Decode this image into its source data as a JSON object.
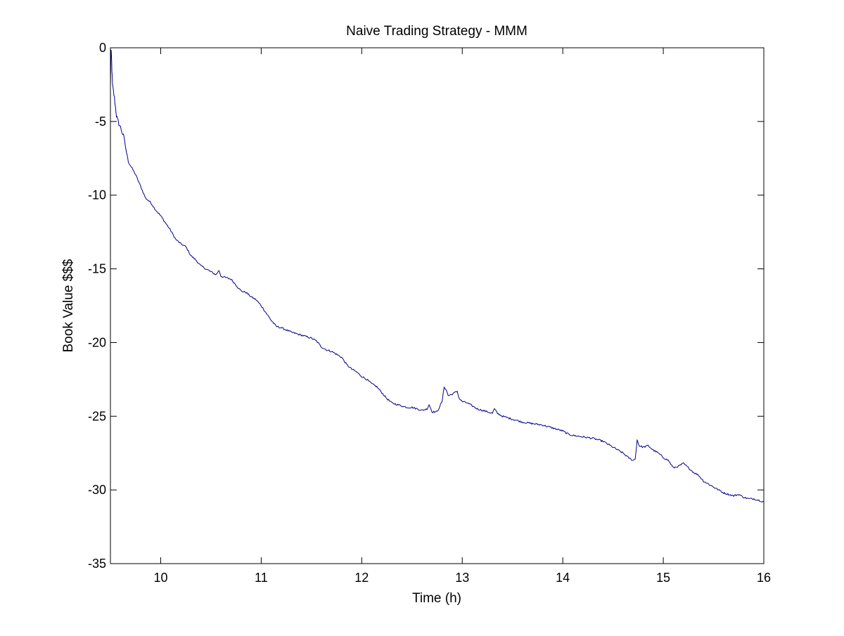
{
  "chart_data": {
    "type": "line",
    "title": "Naive Trading Strategy - MMM",
    "xlabel": "Time (h)",
    "ylabel": "Book Value $$$",
    "xlim": [
      9.5,
      16
    ],
    "ylim": [
      -35,
      0
    ],
    "xticks": [
      10,
      11,
      12,
      13,
      14,
      15,
      16
    ],
    "yticks": [
      0,
      -5,
      -10,
      -15,
      -20,
      -25,
      -30,
      -35
    ],
    "grid": false,
    "legend": "none",
    "series": [
      {
        "color": "#00008b",
        "points": [
          [
            9.5,
            -2.6
          ],
          [
            9.505,
            -0.2
          ],
          [
            9.51,
            -0.5
          ],
          [
            9.515,
            -1.5
          ],
          [
            9.52,
            -2.5
          ],
          [
            9.53,
            -3.0
          ],
          [
            9.54,
            -3.4
          ],
          [
            9.55,
            -4.0
          ],
          [
            9.56,
            -4.6
          ],
          [
            9.57,
            -4.9
          ],
          [
            9.6,
            -5.4
          ],
          [
            9.63,
            -6.0
          ],
          [
            9.65,
            -6.7
          ],
          [
            9.67,
            -7.5
          ],
          [
            9.7,
            -8.0
          ],
          [
            9.75,
            -8.6
          ],
          [
            9.8,
            -9.4
          ],
          [
            9.85,
            -10.2
          ],
          [
            9.9,
            -10.5
          ],
          [
            9.95,
            -11.0
          ],
          [
            10.0,
            -11.4
          ],
          [
            10.05,
            -11.9
          ],
          [
            10.1,
            -12.4
          ],
          [
            10.15,
            -13.0
          ],
          [
            10.2,
            -13.3
          ],
          [
            10.25,
            -13.5
          ],
          [
            10.3,
            -14.1
          ],
          [
            10.35,
            -14.4
          ],
          [
            10.4,
            -14.8
          ],
          [
            10.45,
            -15.0
          ],
          [
            10.5,
            -15.2
          ],
          [
            10.55,
            -15.4
          ],
          [
            10.58,
            -15.1
          ],
          [
            10.6,
            -15.5
          ],
          [
            10.65,
            -15.6
          ],
          [
            10.7,
            -15.7
          ],
          [
            10.75,
            -16.1
          ],
          [
            10.8,
            -16.5
          ],
          [
            10.85,
            -16.6
          ],
          [
            10.9,
            -16.9
          ],
          [
            10.95,
            -17.1
          ],
          [
            11.0,
            -17.5
          ],
          [
            11.05,
            -18.0
          ],
          [
            11.1,
            -18.5
          ],
          [
            11.15,
            -18.9
          ],
          [
            11.2,
            -19.0
          ],
          [
            11.3,
            -19.3
          ],
          [
            11.4,
            -19.5
          ],
          [
            11.5,
            -19.7
          ],
          [
            11.55,
            -19.9
          ],
          [
            11.6,
            -20.3
          ],
          [
            11.65,
            -20.5
          ],
          [
            11.7,
            -20.6
          ],
          [
            11.75,
            -20.8
          ],
          [
            11.8,
            -21.0
          ],
          [
            11.85,
            -21.5
          ],
          [
            11.9,
            -21.8
          ],
          [
            11.95,
            -22.0
          ],
          [
            12.0,
            -22.3
          ],
          [
            12.05,
            -22.5
          ],
          [
            12.1,
            -22.8
          ],
          [
            12.15,
            -23.0
          ],
          [
            12.2,
            -23.4
          ],
          [
            12.25,
            -23.8
          ],
          [
            12.3,
            -24.1
          ],
          [
            12.35,
            -24.2
          ],
          [
            12.4,
            -24.3
          ],
          [
            12.45,
            -24.4
          ],
          [
            12.5,
            -24.4
          ],
          [
            12.55,
            -24.5
          ],
          [
            12.6,
            -24.6
          ],
          [
            12.65,
            -24.5
          ],
          [
            12.67,
            -24.2
          ],
          [
            12.7,
            -24.7
          ],
          [
            12.75,
            -24.7
          ],
          [
            12.8,
            -24.0
          ],
          [
            12.82,
            -23.0
          ],
          [
            12.84,
            -23.2
          ],
          [
            12.86,
            -23.6
          ],
          [
            12.9,
            -23.5
          ],
          [
            12.95,
            -23.3
          ],
          [
            12.97,
            -23.8
          ],
          [
            13.0,
            -24.0
          ],
          [
            13.05,
            -24.1
          ],
          [
            13.1,
            -24.3
          ],
          [
            13.15,
            -24.5
          ],
          [
            13.2,
            -24.6
          ],
          [
            13.25,
            -24.7
          ],
          [
            13.3,
            -24.8
          ],
          [
            13.32,
            -24.5
          ],
          [
            13.35,
            -24.8
          ],
          [
            13.4,
            -25.0
          ],
          [
            13.45,
            -25.1
          ],
          [
            13.5,
            -25.2
          ],
          [
            13.55,
            -25.3
          ],
          [
            13.6,
            -25.4
          ],
          [
            13.7,
            -25.5
          ],
          [
            13.8,
            -25.6
          ],
          [
            13.9,
            -25.8
          ],
          [
            14.0,
            -26.0
          ],
          [
            14.05,
            -26.2
          ],
          [
            14.1,
            -26.3
          ],
          [
            14.2,
            -26.4
          ],
          [
            14.3,
            -26.5
          ],
          [
            14.4,
            -26.7
          ],
          [
            14.45,
            -26.9
          ],
          [
            14.5,
            -27.1
          ],
          [
            14.55,
            -27.3
          ],
          [
            14.6,
            -27.5
          ],
          [
            14.65,
            -27.8
          ],
          [
            14.7,
            -28.0
          ],
          [
            14.72,
            -27.9
          ],
          [
            14.74,
            -26.6
          ],
          [
            14.76,
            -27.0
          ],
          [
            14.8,
            -27.1
          ],
          [
            14.85,
            -27.0
          ],
          [
            14.9,
            -27.3
          ],
          [
            14.95,
            -27.5
          ],
          [
            15.0,
            -27.8
          ],
          [
            15.05,
            -28.0
          ],
          [
            15.1,
            -28.5
          ],
          [
            15.15,
            -28.4
          ],
          [
            15.2,
            -28.2
          ],
          [
            15.25,
            -28.5
          ],
          [
            15.3,
            -28.8
          ],
          [
            15.35,
            -29.0
          ],
          [
            15.4,
            -29.4
          ],
          [
            15.45,
            -29.6
          ],
          [
            15.5,
            -29.8
          ],
          [
            15.55,
            -30.0
          ],
          [
            15.6,
            -30.2
          ],
          [
            15.65,
            -30.3
          ],
          [
            15.7,
            -30.4
          ],
          [
            15.75,
            -30.3
          ],
          [
            15.8,
            -30.5
          ],
          [
            15.85,
            -30.6
          ],
          [
            15.9,
            -30.6
          ],
          [
            15.95,
            -30.7
          ],
          [
            16.0,
            -30.8
          ]
        ]
      }
    ]
  }
}
